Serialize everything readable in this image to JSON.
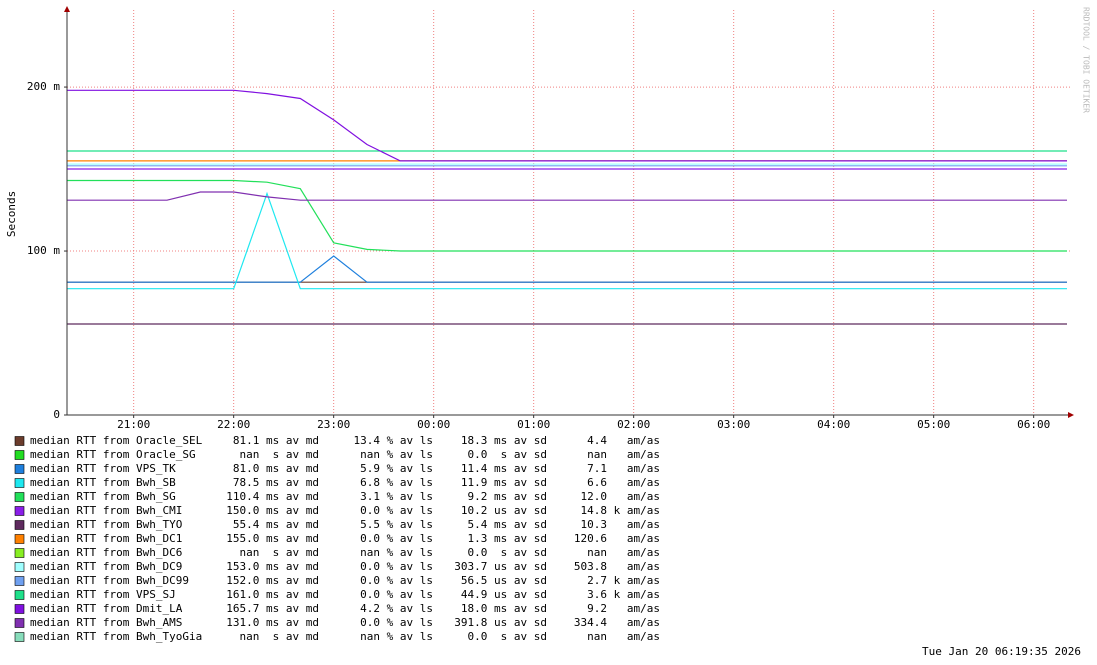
{
  "chart_data": {
    "type": "line",
    "y_label": "Seconds",
    "watermark": "RRDTOOL / TOBI OETIKER",
    "timestamp": "Tue Jan 20 06:19:35 2026",
    "grid": true,
    "x": [
      "20:20",
      "20:40",
      "21:00",
      "21:20",
      "21:40",
      "22:00",
      "22:20",
      "22:40",
      "23:00",
      "23:20",
      "23:40",
      "00:00",
      "00:20",
      "00:40",
      "01:00",
      "01:20",
      "01:40",
      "02:00",
      "02:20",
      "02:40",
      "03:00",
      "03:20",
      "03:40",
      "04:00",
      "04:20",
      "04:40",
      "05:00",
      "05:20",
      "05:40",
      "06:00",
      "06:20"
    ],
    "xticks": [
      "21:00",
      "22:00",
      "23:00",
      "00:00",
      "01:00",
      "02:00",
      "03:00",
      "04:00",
      "05:00",
      "06:00"
    ],
    "ylim": [
      0,
      0.247
    ],
    "yticks": [
      0,
      {
        "value": 0.1,
        "label": "100 m"
      },
      {
        "value": 0.2,
        "label": "200 m"
      }
    ],
    "series": [
      {
        "name": "median RTT from Oracle_SEL",
        "color": "#6b3c2c",
        "stats": [
          "81.1 ms av md",
          "13.4 % av ls",
          "18.3 ms av sd",
          "4.4   am/as"
        ],
        "values": [
          0.081,
          0.081,
          0.081,
          0.081,
          0.081,
          0.081,
          0.081,
          0.081,
          0.081,
          0.081,
          0.081,
          0.081,
          0.081,
          0.081,
          0.081,
          0.081,
          0.081,
          0.081,
          0.081,
          0.081,
          0.081,
          0.081,
          0.081,
          0.081,
          0.081,
          0.081,
          0.081,
          0.081,
          0.081,
          0.081,
          0.081
        ]
      },
      {
        "name": "median RTT from Oracle_SG",
        "color": "#22dd22",
        "stats": [
          "nan  s av md",
          "nan % av ls",
          "0.0  s av sd",
          "nan   am/as"
        ],
        "values": [
          null,
          null,
          null,
          null,
          null,
          null,
          null,
          null,
          null,
          null,
          null,
          null,
          null,
          null,
          null,
          null,
          null,
          null,
          null,
          null,
          null,
          null,
          null,
          null,
          null,
          null,
          null,
          null,
          null,
          null,
          null
        ]
      },
      {
        "name": "median RTT from VPS_TK",
        "color": "#1e7fdd",
        "stats": [
          "81.0 ms av md",
          "5.9 % av ls",
          "11.4 ms av sd",
          "7.1   am/as"
        ],
        "values": [
          0.081,
          0.081,
          0.081,
          0.081,
          0.081,
          0.081,
          0.081,
          0.081,
          0.097,
          0.081,
          0.081,
          0.081,
          0.081,
          0.081,
          0.081,
          0.081,
          0.081,
          0.081,
          0.081,
          0.081,
          0.081,
          0.081,
          0.081,
          0.081,
          0.081,
          0.081,
          0.081,
          0.081,
          0.081,
          0.081,
          0.081
        ]
      },
      {
        "name": "median RTT from Bwh_SB",
        "color": "#1ee8f0",
        "stats": [
          "78.5 ms av md",
          "6.8 % av ls",
          "11.9 ms av sd",
          "6.6   am/as"
        ],
        "values": [
          0.077,
          0.077,
          0.077,
          0.077,
          0.077,
          0.077,
          0.135,
          0.077,
          0.077,
          0.077,
          0.077,
          0.077,
          0.077,
          0.077,
          0.077,
          0.077,
          0.077,
          0.077,
          0.077,
          0.077,
          0.077,
          0.077,
          0.077,
          0.077,
          0.077,
          0.077,
          0.077,
          0.077,
          0.077,
          0.077,
          0.077
        ]
      },
      {
        "name": "median RTT from Bwh_SG",
        "color": "#22e05a",
        "stats": [
          "110.4 ms av md",
          "3.1 % av ls",
          "9.2 ms av sd",
          "12.0   am/as"
        ],
        "values": [
          0.143,
          0.143,
          0.143,
          0.143,
          0.143,
          0.143,
          0.142,
          0.138,
          0.105,
          0.101,
          0.1,
          0.1,
          0.1,
          0.1,
          0.1,
          0.1,
          0.1,
          0.1,
          0.1,
          0.1,
          0.1,
          0.1,
          0.1,
          0.1,
          0.1,
          0.1,
          0.1,
          0.1,
          0.1,
          0.1,
          0.1
        ]
      },
      {
        "name": "median RTT from Bwh_CMI",
        "color": "#8a1ee8",
        "stats": [
          "150.0 ms av md",
          "0.0 % av ls",
          "10.2 us av sd",
          "14.8 k am/as"
        ],
        "values": [
          0.15,
          0.15,
          0.15,
          0.15,
          0.15,
          0.15,
          0.15,
          0.15,
          0.15,
          0.15,
          0.15,
          0.15,
          0.15,
          0.15,
          0.15,
          0.15,
          0.15,
          0.15,
          0.15,
          0.15,
          0.15,
          0.15,
          0.15,
          0.15,
          0.15,
          0.15,
          0.15,
          0.15,
          0.15,
          0.15,
          0.15
        ]
      },
      {
        "name": "median RTT from Bwh_TYO",
        "color": "#5e2a5e",
        "stats": [
          "55.4 ms av md",
          "5.5 % av ls",
          "5.4 ms av sd",
          "10.3   am/as"
        ],
        "values": [
          0.0555,
          0.0555,
          0.0555,
          0.0555,
          0.0555,
          0.0555,
          0.0555,
          0.0555,
          0.0555,
          0.0555,
          0.0555,
          0.0555,
          0.0555,
          0.0555,
          0.0555,
          0.0555,
          0.0555,
          0.0555,
          0.0555,
          0.0555,
          0.0555,
          0.0555,
          0.0555,
          0.0555,
          0.0555,
          0.0555,
          0.0555,
          0.0555,
          0.0555,
          0.0555,
          0.0555
        ]
      },
      {
        "name": "median RTT from Bwh_DC1",
        "color": "#ff8000",
        "stats": [
          "155.0 ms av md",
          "0.0 % av ls",
          "1.3 ms av sd",
          "120.6   am/as"
        ],
        "values": [
          0.155,
          0.155,
          0.155,
          0.155,
          0.155,
          0.155,
          0.155,
          0.155,
          0.155,
          0.155,
          0.155,
          0.155,
          0.155,
          0.155,
          0.155,
          0.155,
          0.155,
          0.155,
          0.155,
          0.155,
          0.155,
          0.155,
          0.155,
          0.155,
          0.155,
          0.155,
          0.155,
          0.155,
          0.155,
          0.155,
          0.155
        ]
      },
      {
        "name": "median RTT from Bwh_DC6",
        "color": "#88ee22",
        "stats": [
          "nan  s av md",
          "nan % av ls",
          "0.0  s av sd",
          "nan   am/as"
        ],
        "values": [
          null,
          null,
          null,
          null,
          null,
          null,
          null,
          null,
          null,
          null,
          null,
          null,
          null,
          null,
          null,
          null,
          null,
          null,
          null,
          null,
          null,
          null,
          null,
          null,
          null,
          null,
          null,
          null,
          null,
          null,
          null
        ]
      },
      {
        "name": "median RTT from Bwh_DC9",
        "color": "#a0ffff",
        "stats": [
          "153.0 ms av md",
          "0.0 % av ls",
          "303.7 us av sd",
          "503.8   am/as"
        ],
        "values": [
          0.153,
          0.153,
          0.153,
          0.153,
          0.153,
          0.153,
          0.153,
          0.153,
          0.153,
          0.153,
          0.153,
          0.153,
          0.153,
          0.153,
          0.153,
          0.153,
          0.153,
          0.153,
          0.153,
          0.153,
          0.153,
          0.153,
          0.153,
          0.153,
          0.153,
          0.153,
          0.153,
          0.153,
          0.153,
          0.153,
          0.153
        ]
      },
      {
        "name": "median RTT from Bwh_DC99",
        "color": "#6fa0f0",
        "stats": [
          "152.0 ms av md",
          "0.0 % av ls",
          "56.5 us av sd",
          "2.7 k am/as"
        ],
        "values": [
          0.152,
          0.152,
          0.152,
          0.152,
          0.152,
          0.152,
          0.152,
          0.152,
          0.152,
          0.152,
          0.152,
          0.152,
          0.152,
          0.152,
          0.152,
          0.152,
          0.152,
          0.152,
          0.152,
          0.152,
          0.152,
          0.152,
          0.152,
          0.152,
          0.152,
          0.152,
          0.152,
          0.152,
          0.152,
          0.152,
          0.152
        ]
      },
      {
        "name": "median RTT from VPS_SJ",
        "color": "#1ee08a",
        "stats": [
          "161.0 ms av md",
          "0.0 % av ls",
          "44.9 us av sd",
          "3.6 k am/as"
        ],
        "values": [
          0.161,
          0.161,
          0.161,
          0.161,
          0.161,
          0.161,
          0.161,
          0.161,
          0.161,
          0.161,
          0.161,
          0.161,
          0.161,
          0.161,
          0.161,
          0.161,
          0.161,
          0.161,
          0.161,
          0.161,
          0.161,
          0.161,
          0.161,
          0.161,
          0.161,
          0.161,
          0.161,
          0.161,
          0.161,
          0.161,
          0.161
        ]
      },
      {
        "name": "median RTT from Dmit_LA",
        "color": "#8010e0",
        "stats": [
          "165.7 ms av md",
          "4.2 % av ls",
          "18.0 ms av sd",
          "9.2   am/as"
        ],
        "values": [
          0.198,
          0.198,
          0.198,
          0.198,
          0.198,
          0.198,
          0.196,
          0.193,
          0.18,
          0.165,
          0.155,
          0.155,
          0.155,
          0.155,
          0.155,
          0.155,
          0.155,
          0.155,
          0.155,
          0.155,
          0.155,
          0.155,
          0.155,
          0.155,
          0.155,
          0.155,
          0.155,
          0.155,
          0.155,
          0.155,
          0.155
        ]
      },
      {
        "name": "median RTT from Bwh_AMS",
        "color": "#8030b0",
        "stats": [
          "131.0 ms av md",
          "0.0 % av ls",
          "391.8 us av sd",
          "334.4   am/as"
        ],
        "values": [
          0.131,
          0.131,
          0.131,
          0.131,
          0.136,
          0.136,
          0.133,
          0.131,
          0.131,
          0.131,
          0.131,
          0.131,
          0.131,
          0.131,
          0.131,
          0.131,
          0.131,
          0.131,
          0.131,
          0.131,
          0.131,
          0.131,
          0.131,
          0.131,
          0.131,
          0.131,
          0.131,
          0.131,
          0.131,
          0.131,
          0.131
        ]
      },
      {
        "name": "median RTT from Bwh_TyoGia",
        "color": "#88ddbb",
        "stats": [
          "nan  s av md",
          "nan % av ls",
          "0.0  s av sd",
          "nan   am/as"
        ],
        "values": [
          null,
          null,
          null,
          null,
          null,
          null,
          null,
          null,
          null,
          null,
          null,
          null,
          null,
          null,
          null,
          null,
          null,
          null,
          null,
          null,
          null,
          null,
          null,
          null,
          null,
          null,
          null,
          null,
          null,
          null,
          null
        ]
      }
    ]
  }
}
